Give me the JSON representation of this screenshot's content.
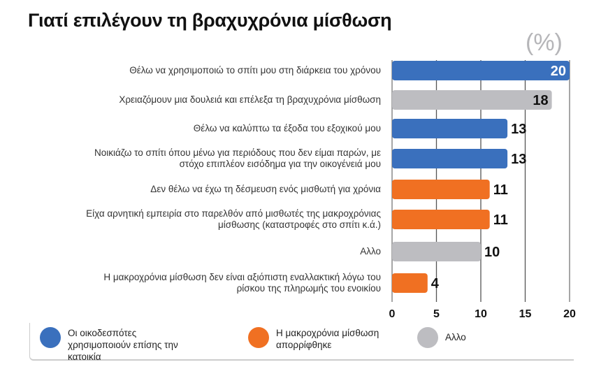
{
  "chart_data": {
    "type": "bar",
    "orientation": "horizontal",
    "title": "Γιατί επιλέγουν τη βραχυχρόνια μίσθωση",
    "unit": "(%)",
    "categories": [
      "Θέλω να χρησιμοποιώ το σπίτι μου στη διάρκεια του χρόνου",
      "Χρειαζόμουν μια δουλειά και επέλεξα τη βραχυχρόνια μίσθωση",
      "Θέλω να καλύπτω τα έξοδα του εξοχικού μου",
      "Νοικιάζω το σπίτι όπου μένω για περιόδους που δεν είμαι παρών, με στόχο επιπλέον εισόδημα για την οικογένειά μου",
      "Δεν θέλω να έχω τη δέσμευση ενός μισθωτή για χρόνια",
      "Είχα αρνητική εμπειρία στο παρελθόν από μισθωτές της μακροχρόνιας μίσθωσης (καταστροφές στο σπίτι κ.ά.)",
      "Αλλο",
      "Η μακροχρόνια μίσθωση δεν είναι αξιόπιστη εναλλακτική λόγω του ρίσκου της πληρωμής του ενοικίου"
    ],
    "values": [
      20,
      18,
      13,
      13,
      11,
      11,
      10,
      4
    ],
    "groups": [
      0,
      2,
      0,
      0,
      1,
      1,
      2,
      1
    ],
    "xlim": [
      0,
      20
    ],
    "xticks": [
      "0",
      "5",
      "10",
      "15",
      "20"
    ],
    "grid": true,
    "legend": {
      "placement": "bottom",
      "entries": [
        {
          "name": "Οι οικοδεσπότες χρησιμοποιούν επίσης την κατοικία",
          "color": "#3a70bd"
        },
        {
          "name": "Η μακροχρόνια μίσθωση απορρίφθηκε",
          "color": "#f07022"
        },
        {
          "name": "Αλλο",
          "color": "#bdbdc1"
        }
      ]
    }
  }
}
